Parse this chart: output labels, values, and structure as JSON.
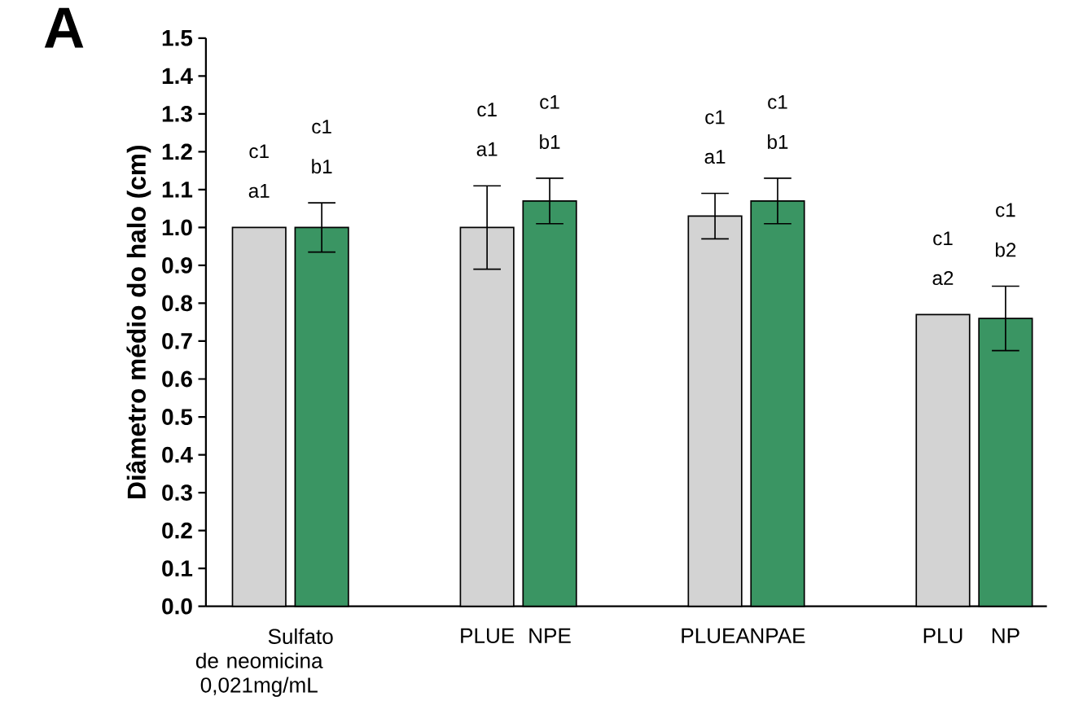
{
  "chart_data": {
    "type": "bar",
    "title": "A",
    "ylabel": "Diâmetro médio do halo (cm)",
    "categories": [
      "Sulfato de neomicina 0,021mg/mL",
      null,
      "PLUE",
      "NPE",
      "PLUEA",
      "NPAE",
      "PLU",
      "NP"
    ],
    "values": [
      1.0,
      1.0,
      1.0,
      1.07,
      1.03,
      1.07,
      0.77,
      0.76
    ],
    "colors": [
      "#d3d3d3",
      "#3a9563",
      "#d3d3d3",
      "#3a9563",
      "#d3d3d3",
      "#3a9563",
      "#d3d3d3",
      "#3a9563"
    ],
    "errors": [
      null,
      0.065,
      0.11,
      0.06,
      0.06,
      0.06,
      null,
      0.085
    ],
    "ylim": [
      0,
      1.5
    ],
    "yticks": [
      {
        "value": 0,
        "label": "0.0"
      },
      {
        "value": 0.1,
        "label": "0.1"
      },
      {
        "value": 0.2,
        "label": "0.2"
      },
      {
        "value": 0.3,
        "label": "0.3"
      },
      {
        "value": 0.4,
        "label": "0.4"
      },
      {
        "value": 0.5,
        "label": "0.5"
      },
      {
        "value": 0.6,
        "label": "0.6"
      },
      {
        "value": 0.7,
        "label": "0.7"
      },
      {
        "value": 0.8,
        "label": "0.8"
      },
      {
        "value": 0.9,
        "label": "0.9"
      },
      {
        "value": 1.0,
        "label": "1.0"
      },
      {
        "value": 1.1,
        "label": "1.1"
      },
      {
        "value": 1.2,
        "label": "1.2"
      },
      {
        "value": 1.3,
        "label": "1.3"
      },
      {
        "value": 1.4,
        "label": "1.4"
      },
      {
        "value": 1.5,
        "label": "1.5"
      }
    ],
    "annotations": [
      "c1",
      "a1",
      "c1",
      "b1",
      "c1",
      "a1",
      "c1",
      "b1",
      "c1",
      "a1",
      "c1",
      "b1",
      "c1",
      "a2",
      "c1",
      "b2"
    ]
  }
}
